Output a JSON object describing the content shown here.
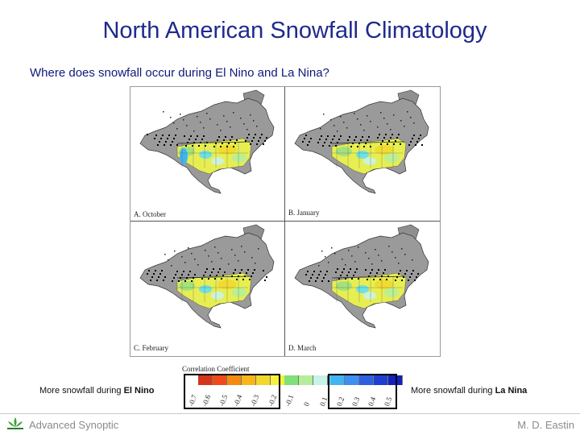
{
  "slide": {
    "title": "North American Snowfall Climatology",
    "subtitle": "Where does snowfall occur during El Nino and La Nina?"
  },
  "panels": [
    {
      "label": "A.  October"
    },
    {
      "label": "B.  January"
    },
    {
      "label": "C.  February"
    },
    {
      "label": "D.  March"
    }
  ],
  "colorbar": {
    "title": "Correlation Coefficient",
    "negative_colors": [
      "#d4351c",
      "#f04a1a",
      "#f48a10",
      "#f7b71a",
      "#f2d82b",
      "#f3f23c"
    ],
    "neutral_colors": [
      "#80e07a",
      "#b5ee9a",
      "#c9f2e8",
      "#5fe0f2"
    ],
    "positive_colors": [
      "#42b5f0",
      "#3f8ff2",
      "#2e5fe0",
      "#1f3fd2",
      "#1520b8"
    ],
    "ticks": [
      "-0.7",
      "-0.6",
      "-0.5",
      "-0.4",
      "-0.3",
      "-0.2",
      "-0.1",
      "0",
      "0.1",
      "0.2",
      "0.3",
      "0.4",
      "0.5"
    ]
  },
  "labels": {
    "el_nino_prefix": "More snowfall during ",
    "el_nino_bold": "El Nino",
    "la_nina_prefix": "More snowfall during ",
    "la_nina_bold": "La Nina"
  },
  "footer": {
    "left": "Advanced Synoptic",
    "right": "M. D. Eastin"
  }
}
